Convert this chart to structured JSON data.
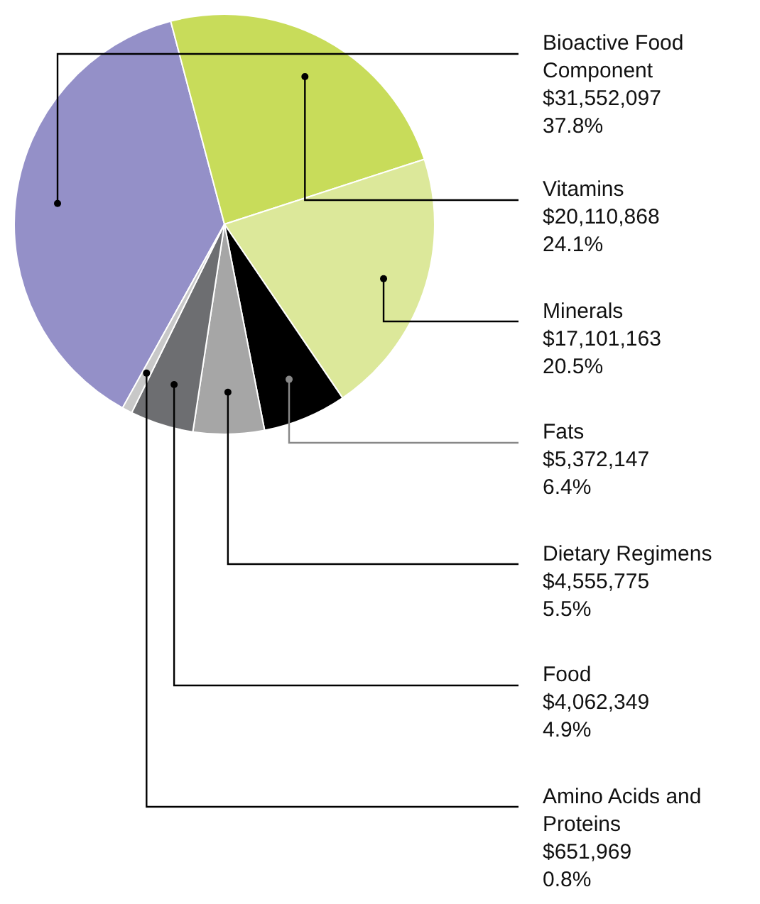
{
  "chart_data": {
    "type": "pie",
    "categories": [
      "Bioactive Food Component",
      "Vitamins",
      "Minerals",
      "Fats",
      "Dietary Regimens",
      "Food",
      "Amino Acids and Proteins"
    ],
    "values": [
      31552097,
      20110868,
      17101163,
      5372147,
      4555775,
      4062349,
      651969
    ],
    "value_labels": [
      "$31,552,097\n37.8%",
      "$20,110,868\n24.1%",
      "$17,101,163\n20.5%",
      "$5,372,147\n6.4%",
      "$4,555,775\n5.5%",
      "$4,062,349\n4.9%",
      "$651,969\n0.8%"
    ],
    "colors": [
      "#9490c8",
      "#c8dc5a",
      "#dce89a",
      "#000000",
      "#a6a6a6",
      "#6d6e71",
      "#c8c8c8"
    ],
    "legend": false
  }
}
